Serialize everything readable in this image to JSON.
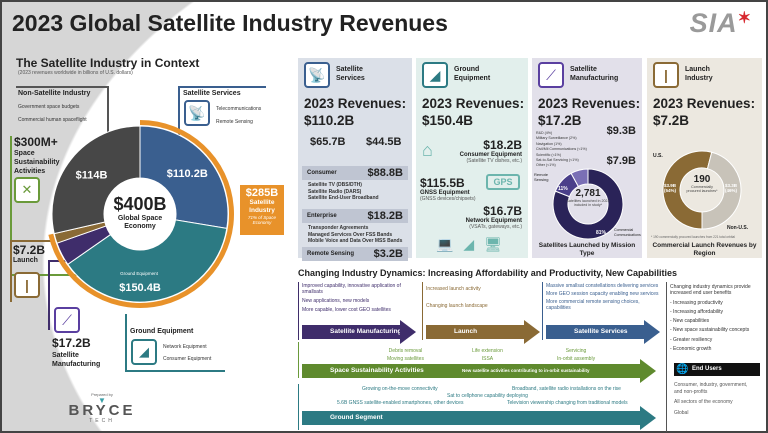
{
  "title": "2023 Global Satellite Industry Revenues",
  "logo": "SIA",
  "context": {
    "title": "The Satellite Industry in Context",
    "subtitle": "(2023 revenues worldwide in billions of U.S. dollars)",
    "non_sat": {
      "title": "Non-Satellite Industry",
      "items": [
        "Government space budgets",
        "Commercial human spaceflight"
      ]
    },
    "sat_services": {
      "title": "Satellite Services",
      "items": [
        "Telecommunications",
        "Remote Sensing"
      ]
    },
    "sustainability": {
      "value": "$300M+",
      "label": "Space Sustainability Activities"
    },
    "launch": {
      "value": "$7.2B",
      "label": "Launch"
    },
    "manufacturing": {
      "value": "$17.2B",
      "label": "Satellite Manufacturing"
    },
    "ground": {
      "title": "Ground Equipment",
      "items": [
        "Network Equipment",
        "Consumer Equipment"
      ]
    },
    "sat_industry": {
      "value": "$285B",
      "label": "Satellite Industry",
      "note": "71% of Space Economy"
    },
    "donut": {
      "center_value": "$400B",
      "center_label": "Global Space Economy",
      "segments": [
        {
          "name": "Satellite Services",
          "value": 110.2,
          "label": "$110.2B",
          "color": "#3a5f8f"
        },
        {
          "name": "Ground Equipment",
          "value": 150.4,
          "label": "$150.4B",
          "color": "#2c7a83"
        },
        {
          "name": "Satellite Manufacturing",
          "value": 17.2,
          "label": "",
          "color": "#3f2d6b"
        },
        {
          "name": "Launch",
          "value": 7.2,
          "label": "",
          "color": "#8a6a35"
        },
        {
          "name": "Non-Satellite Industry",
          "value": 114,
          "label": "$114B",
          "color": "#474747"
        }
      ],
      "ground_caption": "Ground Equipment",
      "ring_color": "#e8922a"
    },
    "prepared_by": "Prepared by",
    "bryce": "BRYCE",
    "tech": "TECH"
  },
  "services": {
    "title": "Satellite Services",
    "rev_label": "2023 Revenues:",
    "rev": "$110.2B",
    "us": "$65.7B",
    "nonus": "$44.5B",
    "rows": [
      {
        "label": "Consumer",
        "value": "$88.8B",
        "items": [
          "Satellite TV (DBS/DTH)",
          "Satellite Radio (DARS)",
          "Satellite End-User Broadband"
        ]
      },
      {
        "label": "Enterprise",
        "value": "$18.2B",
        "items": [
          "Transponder Agreements",
          "Managed Services Over FSS Bands",
          "Mobile Voice and Data Over MSS Bands"
        ]
      },
      {
        "label": "Remote Sensing",
        "value": "$3.2B",
        "items": []
      }
    ]
  },
  "ground": {
    "title": "Ground Equipment",
    "rev_label": "2023 Revenues:",
    "rev": "$150.4B",
    "items": [
      {
        "value": "$18.2B",
        "label": "Consumer Equipment",
        "note": "(Satellite TV dishes, etc.)"
      },
      {
        "value": "$115.5B",
        "label": "GNSS Equipment",
        "note": "(GNSS devices/chipsets)"
      },
      {
        "value": "$16.7B",
        "label": "Network Equipment",
        "note": "(VSATs, gateways, etc.)"
      }
    ],
    "gps": "GPS"
  },
  "manufacturing": {
    "title": "Satellite Manufacturing",
    "rev_label": "2023 Revenues:",
    "rev": "$17.2B",
    "us": "$9.3B",
    "nonus": "$7.9B",
    "mission_list": [
      "R&D (4%)",
      "Military Surveillance (2%)",
      "Navigation (1%)",
      "Civil/Mil Communications (<1%)",
      "Scientific (<1%)",
      "Sat-to-Sat Servicing (<1%)",
      "Other (<1%)"
    ],
    "donut_center": "2,781",
    "donut_note": "Satellites launched in 2023 included in study*",
    "remote_sensing": "Remote Sensing",
    "rs_pct": "11%",
    "comm_pct": "81%",
    "comm_label": "Commercial Communications",
    "caption": "Satellites Launched by Mission Type"
  },
  "launch": {
    "title": "Launch Industry",
    "rev_label": "2023 Revenues:",
    "rev": "$7.2B",
    "us_label": "U.S.",
    "nonus_label": "Non-U.S.",
    "us_val": "$3.9B",
    "us_pct": "(54%)",
    "nonus_val": "$3.3B",
    "nonus_pct": "(46%)",
    "us_share": 54,
    "center": "190",
    "center_note": "Commercially procured launches*",
    "footnote": "* 190 commercially procured launches from 221 total orbital",
    "caption": "Commercial Launch Revenues by Region"
  },
  "dynamics": {
    "title": "Changing Industry Dynamics: Increasing Affordability and Productivity, New Capabilities",
    "mfg": {
      "label": "Satellite Manufacturing",
      "notes": [
        "Improved capability, innovative application of smallsats",
        "New applications, new models",
        "More capable, lower cost GEO satellites"
      ]
    },
    "launch": {
      "label": "Launch",
      "notes": [
        "Increased launch activity",
        "Changing launch landscape"
      ]
    },
    "services": {
      "label": "Satellite Services",
      "notes": [
        "Massive smallsat constellations delivering services",
        "More GEO session capacity enabling new services",
        "More commercial remote sensing choices, capabilities"
      ]
    },
    "sustain": {
      "label": "Space Sustainability Activities",
      "notes": [
        "Debris removal",
        "Moving satellites",
        "Life extension",
        "ISSA",
        "Servicing",
        "In-orbit assembly"
      ],
      "arrow_note": "New satellite activities contributing to in-orbit sustainability"
    },
    "ground": {
      "label": "Ground Segment",
      "notes": [
        "Growing on-the-move connectivity",
        "Sat to cellphone capability deploying",
        "5.6B GNSS satellite-enabled smartphones, other devices",
        "Broadband, satellite radio installations on the rise",
        "Television viewership changing from traditional models"
      ]
    },
    "benefits": {
      "intro": "Changing industry dynamics provide increased end user benefits",
      "items": [
        "- Increasing productivity",
        "- Increasing affordability",
        "- New capabilities",
        "- New space sustainability concepts",
        "- Greater resiliency",
        "- Economic growth"
      ]
    },
    "end_users": {
      "label": "End Users",
      "items": [
        "Consumer, industry, government, and non-profits",
        "All sectors of the economy",
        "Global"
      ]
    }
  }
}
